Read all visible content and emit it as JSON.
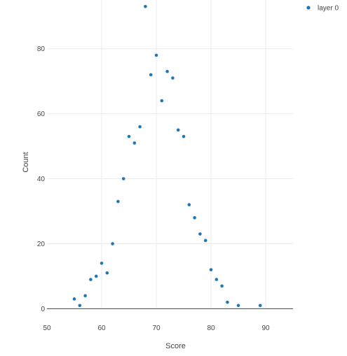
{
  "chart_data": {
    "type": "scatter",
    "xlabel": "Score",
    "ylabel": "Count",
    "xlim": [
      50,
      95
    ],
    "ylim": [
      -4,
      95
    ],
    "x_ticks": [
      50,
      60,
      70,
      80,
      90
    ],
    "y_ticks": [
      0,
      20,
      40,
      60,
      80
    ],
    "grid": true,
    "legend_placement": "top-right",
    "series": [
      {
        "name": "layer 0",
        "color": "#1f77b4",
        "points": [
          {
            "x": 55,
            "y": 3
          },
          {
            "x": 56,
            "y": 1
          },
          {
            "x": 57,
            "y": 4
          },
          {
            "x": 58,
            "y": 9
          },
          {
            "x": 59,
            "y": 10
          },
          {
            "x": 60,
            "y": 14
          },
          {
            "x": 61,
            "y": 11
          },
          {
            "x": 62,
            "y": 20
          },
          {
            "x": 63,
            "y": 33
          },
          {
            "x": 64,
            "y": 40
          },
          {
            "x": 65,
            "y": 53
          },
          {
            "x": 66,
            "y": 51
          },
          {
            "x": 67,
            "y": 56
          },
          {
            "x": 68,
            "y": 93
          },
          {
            "x": 69,
            "y": 72
          },
          {
            "x": 70,
            "y": 78
          },
          {
            "x": 71,
            "y": 64
          },
          {
            "x": 72,
            "y": 73
          },
          {
            "x": 73,
            "y": 71
          },
          {
            "x": 74,
            "y": 55
          },
          {
            "x": 75,
            "y": 53
          },
          {
            "x": 76,
            "y": 32
          },
          {
            "x": 77,
            "y": 28
          },
          {
            "x": 78,
            "y": 23
          },
          {
            "x": 79,
            "y": 21
          },
          {
            "x": 80,
            "y": 12
          },
          {
            "x": 81,
            "y": 9
          },
          {
            "x": 82,
            "y": 7
          },
          {
            "x": 83,
            "y": 2
          },
          {
            "x": 85,
            "y": 1
          },
          {
            "x": 89,
            "y": 1
          }
        ]
      }
    ]
  }
}
